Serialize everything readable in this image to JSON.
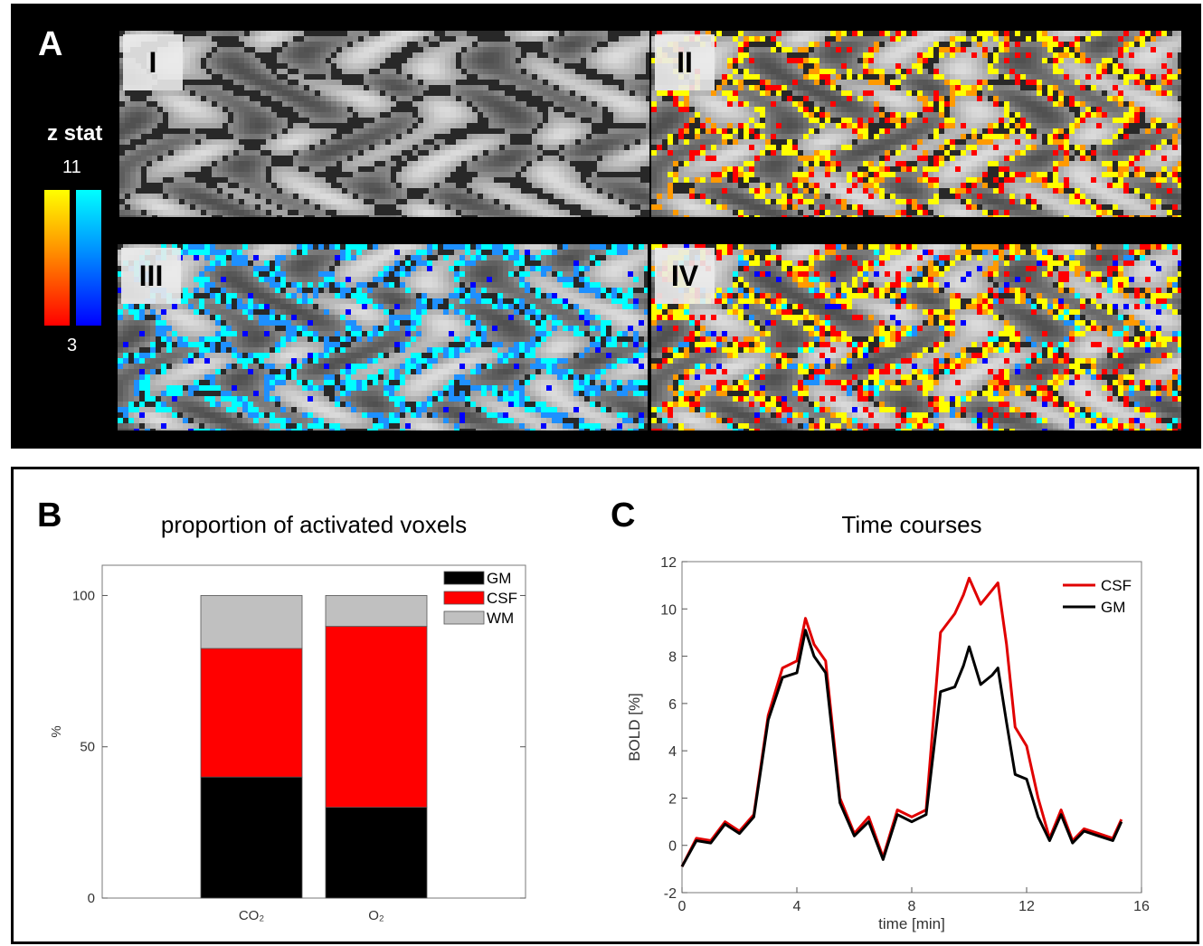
{
  "panelA": {
    "label": "A",
    "colorbar": {
      "title": "z stat",
      "max": "11",
      "min": "3"
    },
    "slices": [
      {
        "label": "I",
        "overlay": "none"
      },
      {
        "label": "II",
        "overlay": "warm"
      },
      {
        "label": "III",
        "overlay": "cool"
      },
      {
        "label": "IV",
        "overlay": "both"
      }
    ],
    "colors": {
      "warm_high": "#ffff00",
      "warm_low": "#ff0000",
      "cool_high": "#00ffff",
      "cool_low": "#0000ff"
    }
  },
  "panelB": {
    "label": "B",
    "chart_data": {
      "type": "bar",
      "stacked": true,
      "title": "proportion of activated voxels",
      "xlabel": "",
      "ylabel": "%",
      "ylim": [
        0,
        110
      ],
      "yticks": [
        0,
        50,
        100
      ],
      "categories": [
        "CO₂",
        "O₂"
      ],
      "series": [
        {
          "name": "GM",
          "color": "#000000",
          "values": [
            40,
            30
          ]
        },
        {
          "name": "CSF",
          "color": "#ff0000",
          "values": [
            42.5,
            59.8
          ]
        },
        {
          "name": "WM",
          "color": "#c0c0c0",
          "values": [
            17.5,
            10.2
          ]
        }
      ],
      "legend": "top-right"
    }
  },
  "panelC": {
    "label": "C",
    "chart_data": {
      "type": "line",
      "title": "Time courses",
      "xlabel": "time  [min]",
      "ylabel": "BOLD  [%]",
      "xlim": [
        0,
        16
      ],
      "ylim": [
        -2,
        12
      ],
      "xticks": [
        0,
        4,
        8,
        12,
        16
      ],
      "yticks": [
        -2,
        0,
        2,
        4,
        6,
        8,
        10,
        12
      ],
      "legend": "top-right",
      "series": [
        {
          "name": "CSF",
          "color": "#e00000",
          "x": [
            0,
            0.5,
            1,
            1.5,
            2,
            2.5,
            3,
            3.5,
            4,
            4.3,
            4.6,
            5,
            5.5,
            6,
            6.5,
            7,
            7.5,
            8,
            8.5,
            9,
            9.5,
            9.8,
            10,
            10.4,
            10.8,
            11,
            11.3,
            11.6,
            12,
            12.4,
            12.8,
            13.2,
            13.6,
            14,
            14.5,
            15,
            15.3
          ],
          "y": [
            -0.9,
            0.3,
            0.2,
            1,
            0.6,
            1.3,
            5.5,
            7.5,
            7.8,
            9.6,
            8.5,
            7.8,
            2,
            0.5,
            1.2,
            -0.5,
            1.5,
            1.2,
            1.5,
            9,
            9.8,
            10.6,
            11.3,
            10.2,
            10.8,
            11.1,
            8.5,
            5,
            4.2,
            2,
            0.3,
            1.5,
            0.2,
            0.7,
            0.5,
            0.3,
            1.1
          ]
        },
        {
          "name": "GM",
          "color": "#000000",
          "x": [
            0,
            0.5,
            1,
            1.5,
            2,
            2.5,
            3,
            3.5,
            4,
            4.3,
            4.6,
            5,
            5.5,
            6,
            6.5,
            7,
            7.5,
            8,
            8.5,
            9,
            9.5,
            9.8,
            10,
            10.4,
            10.8,
            11,
            11.3,
            11.6,
            12,
            12.4,
            12.8,
            13.2,
            13.6,
            14,
            14.5,
            15,
            15.3
          ],
          "y": [
            -0.9,
            0.2,
            0.1,
            0.9,
            0.5,
            1.2,
            5.3,
            7.1,
            7.3,
            9.1,
            8,
            7.3,
            1.8,
            0.4,
            1,
            -0.6,
            1.3,
            1,
            1.3,
            6.5,
            6.7,
            7.6,
            8.4,
            6.8,
            7.2,
            7.5,
            5.2,
            3,
            2.8,
            1.2,
            0.2,
            1.3,
            0.1,
            0.6,
            0.4,
            0.2,
            1
          ]
        }
      ]
    }
  }
}
